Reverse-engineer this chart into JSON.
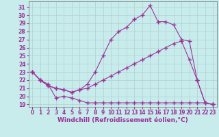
{
  "xlabel": "Windchill (Refroidissement éolien,°C)",
  "background_color": "#c8ecec",
  "grid_color": "#b0d0d0",
  "line_color": "#993399",
  "xlim": [
    -0.5,
    23.5
  ],
  "ylim": [
    18.7,
    31.7
  ],
  "xticks": [
    0,
    1,
    2,
    3,
    4,
    5,
    6,
    7,
    8,
    9,
    10,
    11,
    12,
    13,
    14,
    15,
    16,
    17,
    18,
    19,
    20,
    21,
    22,
    23
  ],
  "yticks": [
    19,
    20,
    21,
    22,
    23,
    24,
    25,
    26,
    27,
    28,
    29,
    30,
    31
  ],
  "line1_y": [
    23.0,
    22.0,
    21.5,
    19.8,
    20.0,
    19.8,
    19.5,
    19.2,
    19.2,
    19.2,
    19.2,
    19.2,
    19.2,
    19.2,
    19.2,
    19.2,
    19.2,
    19.2,
    19.2,
    19.2,
    19.2,
    19.2,
    19.2,
    19.0
  ],
  "line2_y": [
    23.0,
    22.0,
    21.3,
    21.0,
    20.8,
    20.5,
    20.8,
    21.0,
    21.5,
    22.0,
    22.5,
    23.0,
    23.5,
    24.0,
    24.5,
    25.0,
    25.5,
    26.0,
    26.5,
    26.8,
    24.5,
    22.0,
    19.2,
    19.0
  ],
  "line3_y": [
    23.0,
    22.0,
    21.3,
    21.0,
    20.8,
    20.5,
    20.8,
    21.5,
    23.0,
    25.0,
    27.0,
    28.0,
    28.5,
    29.5,
    30.0,
    31.2,
    29.2,
    29.2,
    28.8,
    27.0,
    26.8,
    22.0,
    19.2,
    19.0
  ],
  "tick_fontsize": 5.5,
  "label_fontsize": 6.5
}
